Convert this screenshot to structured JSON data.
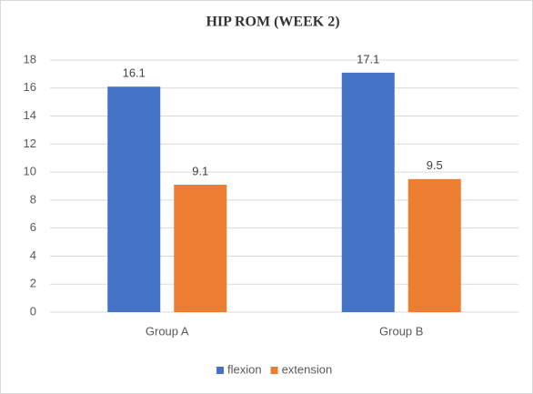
{
  "chart_data": {
    "type": "bar",
    "title": "HIP ROM (WEEK 2)",
    "categories": [
      "Group A",
      "Group B"
    ],
    "series": [
      {
        "name": "flexion",
        "color": "#4472c4",
        "values": [
          16.1,
          17.1
        ]
      },
      {
        "name": "extension",
        "color": "#ed7d31",
        "values": [
          9.1,
          9.5
        ]
      }
    ],
    "ylim": [
      0,
      18
    ],
    "yticks": [
      0,
      2,
      4,
      6,
      8,
      10,
      12,
      14,
      16,
      18
    ],
    "grid": true,
    "legend": "bottom"
  }
}
